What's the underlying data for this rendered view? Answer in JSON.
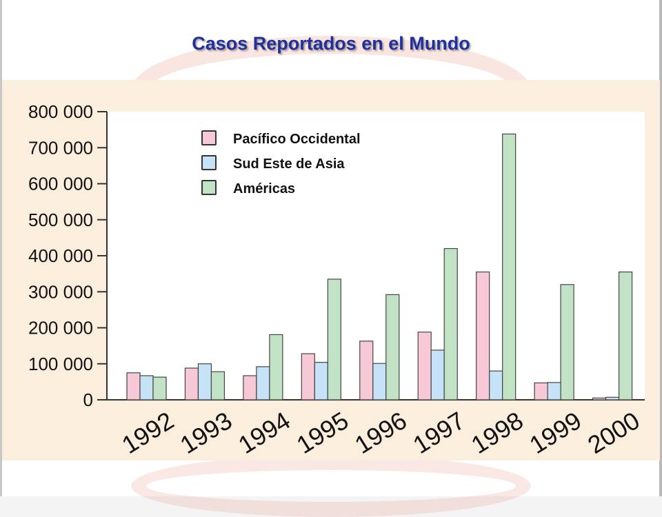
{
  "title": "Casos Reportados en el Mundo",
  "colors": {
    "title": "#1f2f9e",
    "panel_bg": "#fbeedd",
    "plot_bg": "#ffffff"
  },
  "chart_data": {
    "type": "bar",
    "title": "Casos Reportados en el Mundo",
    "xlabel": "",
    "ylabel": "",
    "ylim": [
      0,
      800000
    ],
    "yticks": [
      0,
      100000,
      200000,
      300000,
      400000,
      500000,
      600000,
      700000,
      800000
    ],
    "ytick_labels": [
      "0",
      "100 000",
      "200 000",
      "300 000",
      "400 000",
      "500 000",
      "600 000",
      "700 000",
      "800 000"
    ],
    "categories": [
      "1992",
      "1993",
      "1994",
      "1995",
      "1996",
      "1997",
      "1998",
      "1999",
      "2000"
    ],
    "grid": false,
    "legend_position": "top-left",
    "series": [
      {
        "name": "Pacífico Occidental",
        "color": "#f7c8d6",
        "values": [
          75000,
          88000,
          67000,
          128000,
          163000,
          188000,
          355000,
          47000,
          5000
        ]
      },
      {
        "name": "Sud Este de Asia",
        "color": "#c6e2f6",
        "values": [
          67000,
          100000,
          92000,
          104000,
          101000,
          138000,
          80000,
          48000,
          7000
        ]
      },
      {
        "name": "Américas",
        "color": "#c2e2c5",
        "values": [
          63000,
          78000,
          181000,
          335000,
          292000,
          420000,
          738000,
          320000,
          355000
        ]
      }
    ]
  }
}
